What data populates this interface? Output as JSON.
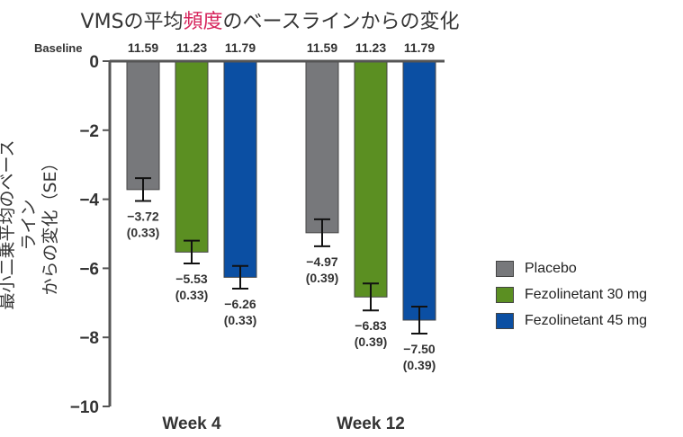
{
  "title": {
    "pre": "VMSの平均",
    "highlight": "頻度",
    "post": "のベースラインからの変化"
  },
  "ylabel_line1": "最小二乗平均のベースライン",
  "ylabel_line2": "からの変化（SE）",
  "baseline_label": "Baseline",
  "colors": {
    "placebo": "#77787b",
    "f30": "#5b8f22",
    "f45": "#0b4fa3",
    "highlight": "#d6245c"
  },
  "chart_data": {
    "type": "bar",
    "categories": [
      "Week 4",
      "Week 12"
    ],
    "ylim": [
      -10,
      0
    ],
    "yticks": [
      "0",
      "−2",
      "−4",
      "−6",
      "−8",
      "−10"
    ],
    "series": [
      {
        "name": "Placebo",
        "values": [
          -3.72,
          -4.97
        ],
        "se": [
          0.33,
          0.39
        ],
        "value_labels": [
          "−3.72",
          "−4.97"
        ],
        "se_labels": [
          "(0.33)",
          "(0.39)"
        ],
        "baseline": [
          "11.59",
          "11.59"
        ]
      },
      {
        "name": "Fezolinetant 30 mg",
        "values": [
          -5.53,
          -6.83
        ],
        "se": [
          0.33,
          0.39
        ],
        "value_labels": [
          "−5.53",
          "−6.83"
        ],
        "se_labels": [
          "(0.33)",
          "(0.39)"
        ],
        "baseline": [
          "11.23",
          "11.23"
        ]
      },
      {
        "name": "Fezolinetant 45 mg",
        "values": [
          -6.26,
          -7.5
        ],
        "se": [
          0.33,
          0.39
        ],
        "value_labels": [
          "−6.26",
          "−7.50"
        ],
        "se_labels": [
          "(0.33)",
          "(0.39)"
        ],
        "baseline": [
          "11.79",
          "11.79"
        ]
      }
    ]
  }
}
